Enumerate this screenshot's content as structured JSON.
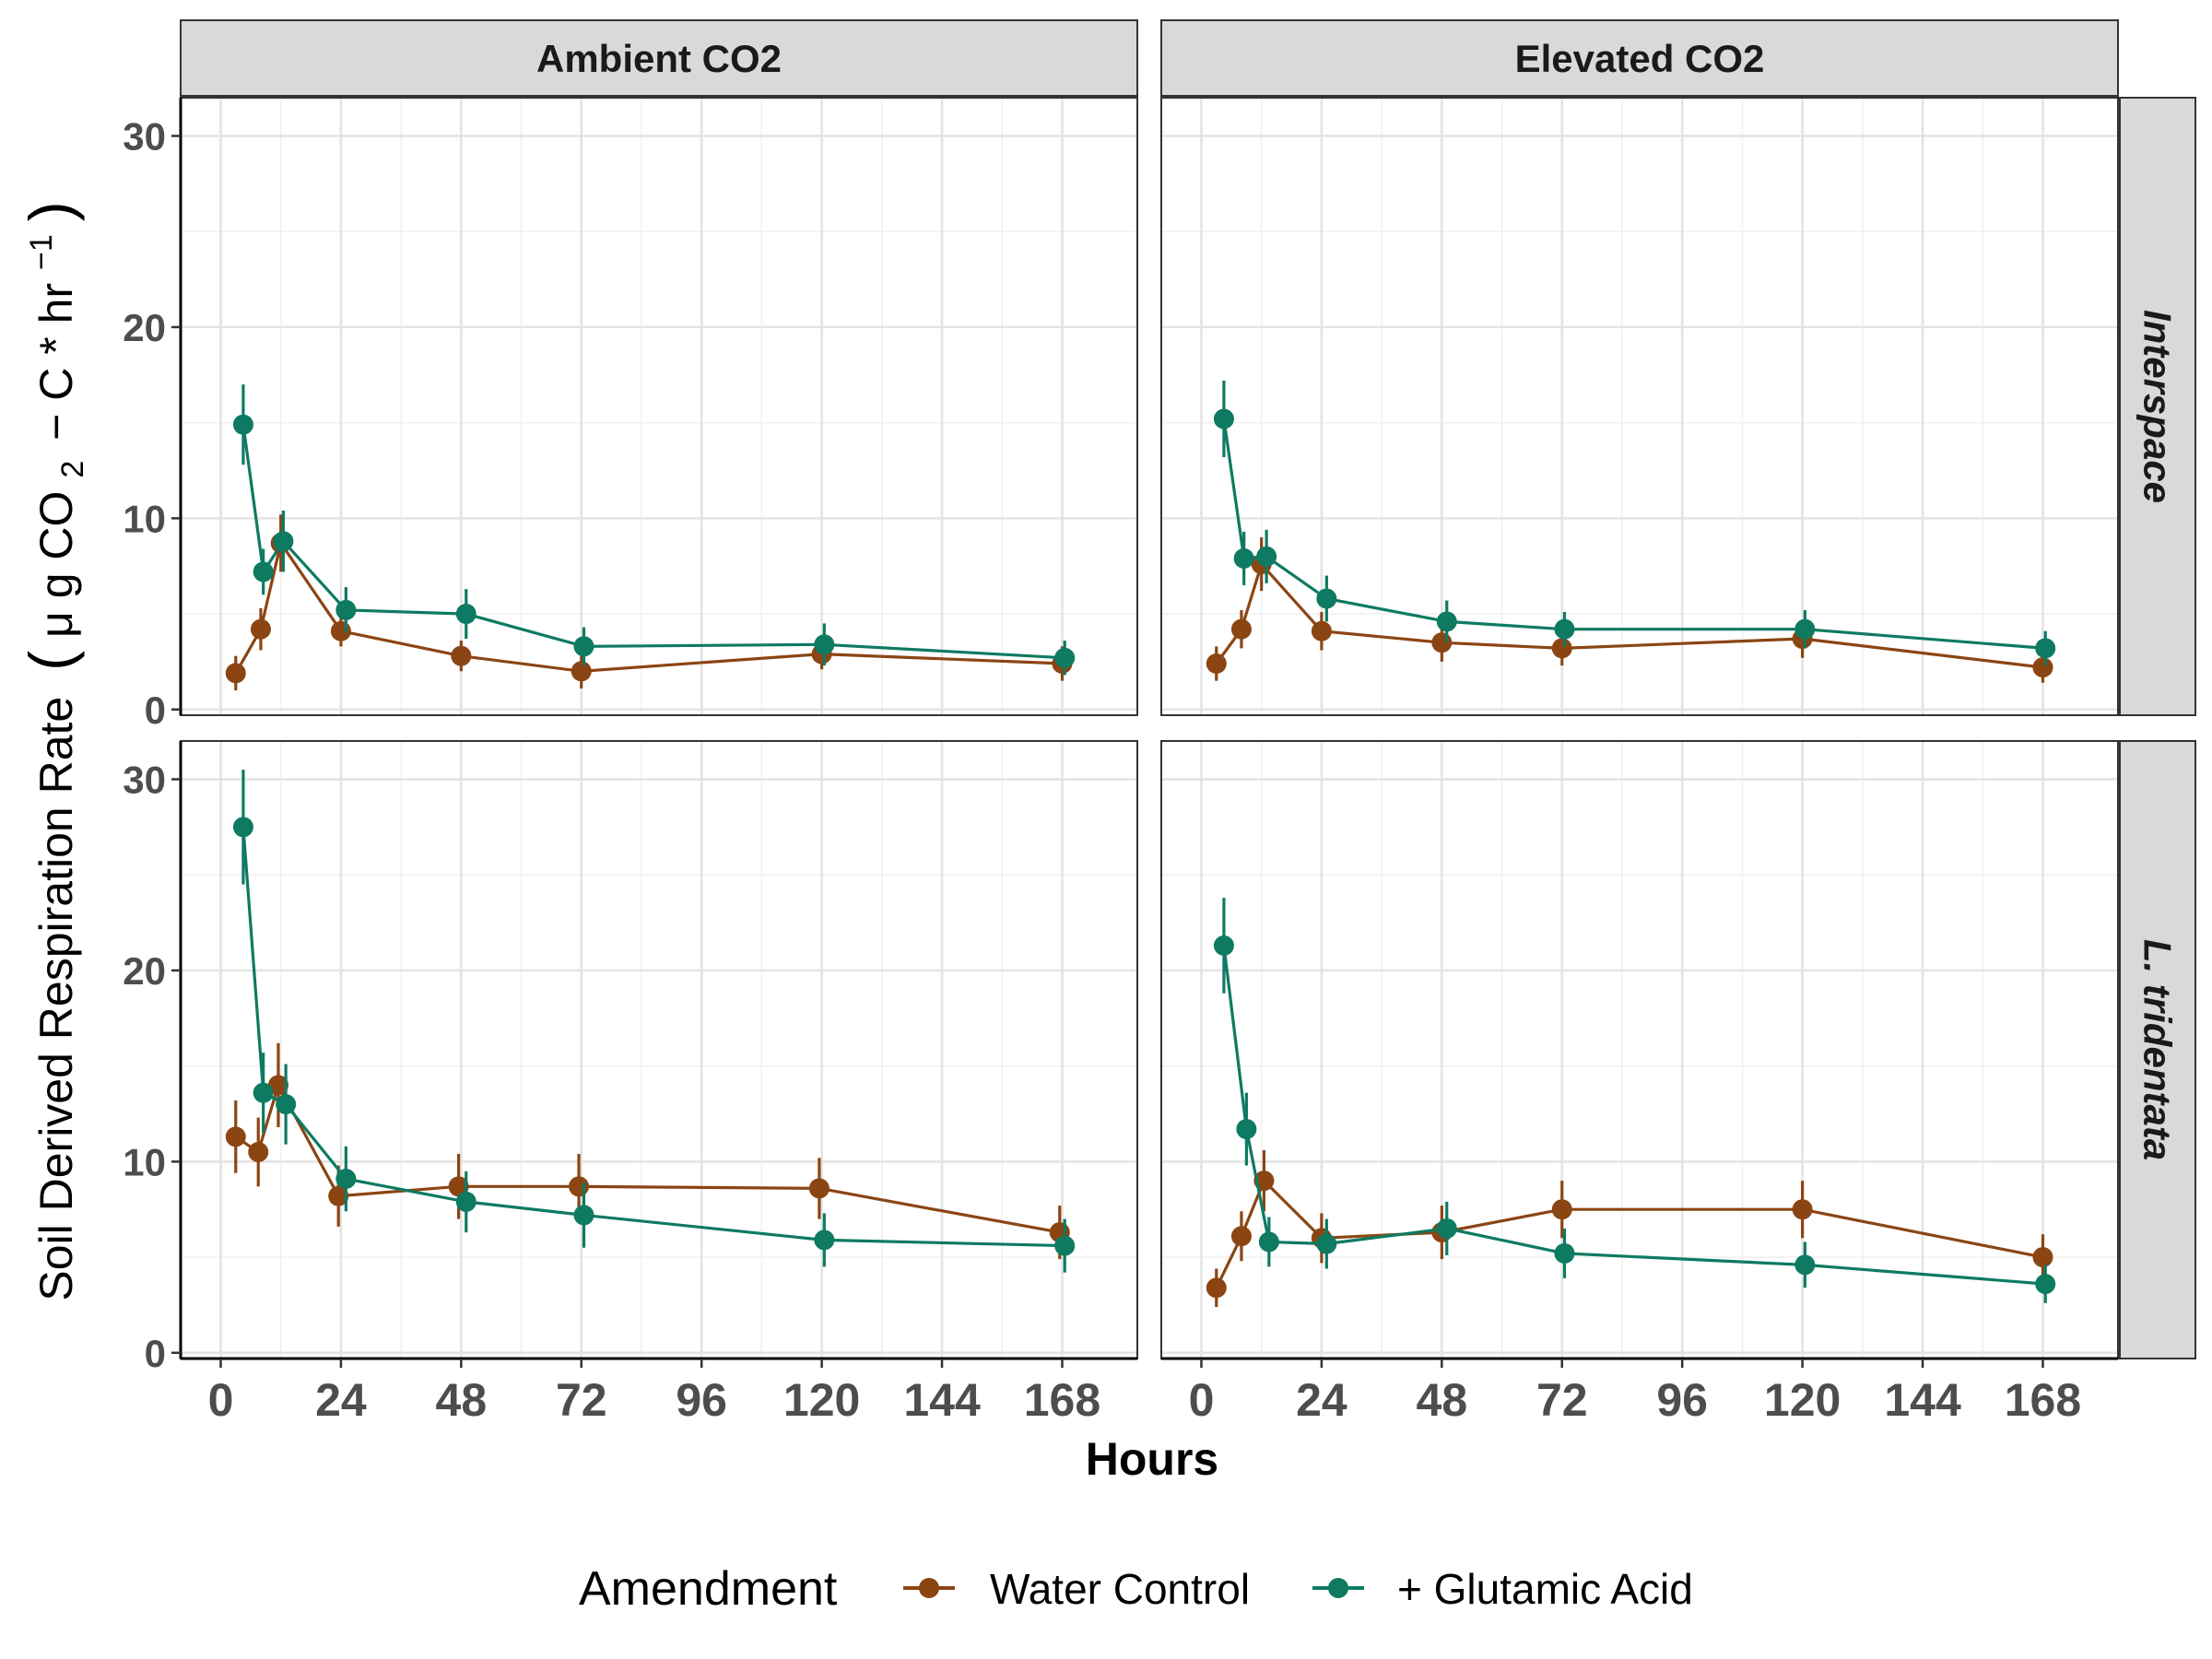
{
  "chart_data": {
    "type": "line",
    "xlabel": "Hours",
    "ylabel": "Soil Derived Respiration Rate",
    "ylabel_units": {
      "open": "(",
      "mu": "μ",
      "g": " g CO",
      "sub2": "2",
      "rest": "− C * hr",
      "sup": "−1",
      "close": ")"
    },
    "x_ticks": [
      0,
      24,
      48,
      72,
      96,
      120,
      144,
      168
    ],
    "y_ticks": [
      0,
      10,
      20,
      30
    ],
    "xlim": [
      -8,
      183
    ],
    "ylim": [
      -0.3,
      32
    ],
    "col_facets": [
      "Ambient CO2",
      "Elevated CO2"
    ],
    "row_facets": [
      "Interspace",
      "L. tridentata"
    ],
    "legend": {
      "title": "Amendment",
      "position": "bottom",
      "entries": [
        "Water Control",
        "+ Glutamic Acid"
      ]
    },
    "series_colors": {
      "Water Control": "#8B4513",
      "+ Glutamic Acid": "#0E7A62"
    },
    "panels": [
      {
        "row": "Interspace",
        "col": "Ambient CO2",
        "series": [
          {
            "name": "Water Control",
            "x": [
              3,
              8,
              12,
              24,
              48,
              72,
              120,
              168
            ],
            "y": [
              1.9,
              4.2,
              8.7,
              4.1,
              2.8,
              2.0,
              2.9,
              2.4
            ],
            "err": [
              0.9,
              1.1,
              1.5,
              0.8,
              0.8,
              0.9,
              0.8,
              0.9
            ]
          },
          {
            "name": "+ Glutamic Acid",
            "x": [
              4.5,
              8.5,
              12.5,
              25,
              49,
              72.5,
              120.5,
              168.5
            ],
            "y": [
              14.9,
              7.2,
              8.8,
              5.2,
              5.0,
              3.3,
              3.4,
              2.7
            ],
            "err": [
              2.1,
              1.2,
              1.6,
              1.2,
              1.3,
              1.0,
              1.1,
              0.9
            ]
          }
        ]
      },
      {
        "row": "Interspace",
        "col": "Elevated CO2",
        "series": [
          {
            "name": "Water Control",
            "x": [
              3,
              8,
              12,
              24,
              48,
              72,
              120,
              168
            ],
            "y": [
              2.4,
              4.2,
              7.6,
              4.1,
              3.5,
              3.2,
              3.7,
              2.2
            ],
            "err": [
              0.9,
              1.0,
              1.4,
              1.0,
              1.0,
              0.9,
              1.0,
              0.8
            ]
          },
          {
            "name": "+ Glutamic Acid",
            "x": [
              4.5,
              8.5,
              13,
              25,
              49,
              72.5,
              120.5,
              168.5
            ],
            "y": [
              15.2,
              7.9,
              8.0,
              5.8,
              4.6,
              4.2,
              4.2,
              3.2
            ],
            "err": [
              2.0,
              1.4,
              1.4,
              1.2,
              1.1,
              0.9,
              1.0,
              0.9
            ]
          }
        ]
      },
      {
        "row": "L. tridentata",
        "col": "Ambient CO2",
        "series": [
          {
            "name": "Water Control",
            "x": [
              3,
              7.5,
              11.5,
              23.5,
              47.5,
              71.5,
              119.5,
              167.5
            ],
            "y": [
              11.3,
              10.5,
              14.0,
              8.2,
              8.7,
              8.7,
              8.6,
              6.3
            ],
            "err": [
              1.9,
              1.8,
              2.2,
              1.6,
              1.7,
              1.7,
              1.6,
              1.4
            ]
          },
          {
            "name": "+ Glutamic Acid",
            "x": [
              4.5,
              8.5,
              13,
              25,
              49,
              72.5,
              120.5,
              168.5
            ],
            "y": [
              27.5,
              13.6,
              13.0,
              9.1,
              7.9,
              7.2,
              5.9,
              5.6
            ],
            "err": [
              3.0,
              2.1,
              2.1,
              1.7,
              1.6,
              1.7,
              1.4,
              1.4
            ]
          }
        ]
      },
      {
        "row": "L. tridentata",
        "col": "Elevated CO2",
        "series": [
          {
            "name": "Water Control",
            "x": [
              3,
              8,
              12.5,
              24,
              48,
              72,
              120,
              168
            ],
            "y": [
              3.4,
              6.1,
              9.0,
              6.0,
              6.3,
              7.5,
              7.5,
              5.0
            ],
            "err": [
              1.0,
              1.3,
              1.6,
              1.3,
              1.4,
              1.5,
              1.5,
              1.2
            ]
          },
          {
            "name": "+ Glutamic Acid",
            "x": [
              4.5,
              9,
              13.5,
              25,
              49,
              72.5,
              120.5,
              168.5
            ],
            "y": [
              21.3,
              11.7,
              5.8,
              5.7,
              6.5,
              5.2,
              4.6,
              3.6
            ],
            "err": [
              2.5,
              1.9,
              1.3,
              1.3,
              1.4,
              1.3,
              1.2,
              1.0
            ]
          }
        ]
      }
    ]
  }
}
